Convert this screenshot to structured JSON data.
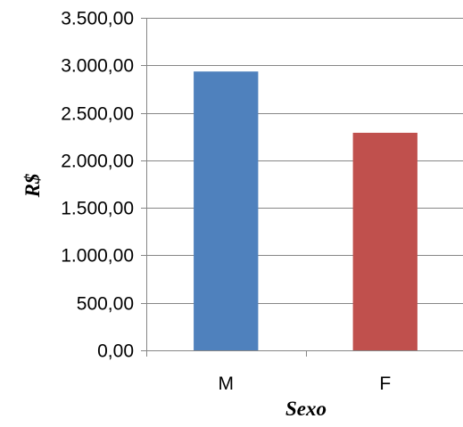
{
  "chart_data": {
    "type": "bar",
    "title": "",
    "xlabel": "Sexo",
    "ylabel": "R$",
    "categories": [
      "M",
      "F"
    ],
    "values": [
      2935,
      2290
    ],
    "colors": [
      "#4F81BD",
      "#C0504D"
    ],
    "ylim": [
      0,
      3500
    ],
    "yticks": [
      0,
      500,
      1000,
      1500,
      2000,
      2500,
      3000,
      3500
    ],
    "ytick_labels": [
      "0,00",
      "500,00",
      "1.000,00",
      "1.500,00",
      "2.000,00",
      "2.500,00",
      "3.000,00",
      "3.500,00"
    ],
    "grid": true,
    "legend": "none"
  }
}
